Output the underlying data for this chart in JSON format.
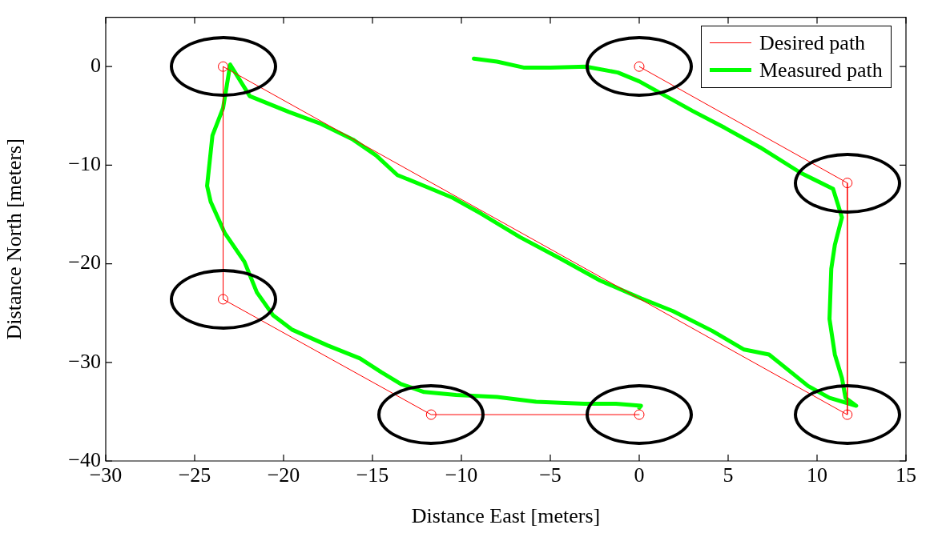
{
  "chart_data": {
    "type": "line",
    "xlabel": "Distance East [meters]",
    "ylabel": "Distance North [meters]",
    "xlim": [
      -30,
      15
    ],
    "xticks": [
      -30,
      -25,
      -20,
      -15,
      -10,
      -5,
      0,
      5,
      10,
      15
    ],
    "ylim": [
      -40,
      5
    ],
    "yticks": [
      -40,
      -30,
      -20,
      -10,
      0
    ],
    "grid": false,
    "legend": "top right",
    "series": [
      {
        "name": "Desired path",
        "color": "#ff0000",
        "marker": "circle",
        "x": [
          0,
          11.7,
          11.7,
          -23.4,
          -23.4,
          -11.7,
          0
        ],
        "values": [
          0,
          -11.8,
          -35.3,
          0,
          -23.6,
          -35.3,
          -35.3
        ]
      },
      {
        "name": "Measured path",
        "color": "#00ff00",
        "marker": "none",
        "x": [
          -9.3,
          -8,
          -6.5,
          -5,
          -3,
          -1.2,
          0,
          1.5,
          3,
          4.8,
          6.8,
          9.1,
          10.9,
          11.4,
          11,
          10.8,
          10.7,
          11,
          11.4,
          11.6,
          12.2,
          10.7,
          9.5,
          8.4,
          7.3,
          5.9,
          4.1,
          1.9,
          0.1,
          -2.2,
          -4.4,
          -6.7,
          -8.9,
          -10.5,
          -12.1,
          -13.6,
          -14.8,
          -16.1,
          -17.9,
          -19.7,
          -21.9,
          -23,
          -23.4,
          -24,
          -24.3,
          -24.1,
          -23.3,
          -22.2,
          -21.5,
          -20.6,
          -19.5,
          -17.5,
          -15.7,
          -14.5,
          -13.4,
          -12.1,
          -10.3,
          -8,
          -5.8,
          -3.1,
          -1.3,
          0.1,
          0
        ],
        "values": [
          0.8,
          0.5,
          -0.1,
          -0.1,
          0,
          -0.6,
          -1.5,
          -3,
          -4.5,
          -6.2,
          -8.2,
          -10.8,
          -12.4,
          -15.3,
          -18.1,
          -20.5,
          -25.6,
          -29.2,
          -31.6,
          -33.6,
          -34.4,
          -33.6,
          -32.4,
          -30.8,
          -29.2,
          -28.7,
          -26.8,
          -24.8,
          -23.5,
          -21.7,
          -19.5,
          -17.3,
          -14.9,
          -13.3,
          -12.1,
          -11,
          -9,
          -7.4,
          -5.8,
          -4.6,
          -3,
          0.2,
          -4.2,
          -7,
          -12.1,
          -13.7,
          -16.9,
          -19.8,
          -22.9,
          -25.2,
          -26.7,
          -28.3,
          -29.6,
          -31,
          -32.2,
          -33,
          -33.3,
          -33.5,
          -34,
          -34.2,
          -34.2,
          -34.4,
          -34.6
        ]
      }
    ]
  }
}
